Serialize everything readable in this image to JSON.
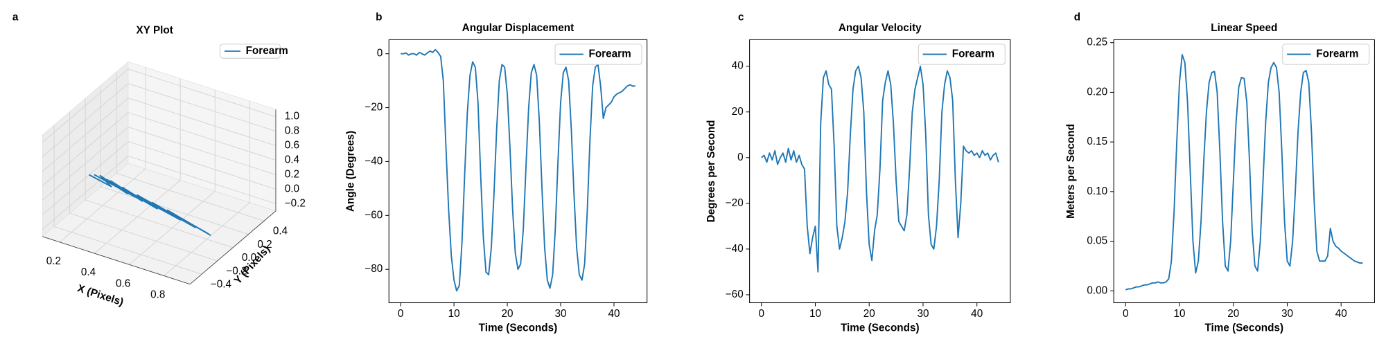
{
  "chart_data": [
    {
      "type": "line3d",
      "panel_label": "a",
      "title": "XY Plot",
      "xlabel": "X (Pixels)",
      "ylabel": "Y (Pixels)",
      "xlim": [
        0.1,
        0.95
      ],
      "ylim": [
        -0.55,
        0.55
      ],
      "zlim": [
        -0.3,
        1.1
      ],
      "xticks": [
        0.2,
        0.4,
        0.6,
        0.8
      ],
      "yticks": [
        {
          "value": -0.4,
          "label": "−0.4"
        },
        {
          "value": -0.2,
          "label": "−0.2"
        },
        {
          "value": 0,
          "label": "0.0"
        },
        0.2,
        0.4
      ],
      "zticks": [
        {
          "value": -0.2,
          "label": "−0.2"
        },
        {
          "value": 0,
          "label": "0.0"
        },
        0.2,
        0.4,
        0.6,
        0.8,
        {
          "value": 1,
          "label": "1.0"
        }
      ],
      "legend": "upper right",
      "series": [
        {
          "name": "Forearm",
          "color": "#1f77b4",
          "x": [
            0.1,
            0.25,
            0.15,
            0.35,
            0.22,
            0.45,
            0.3,
            0.55,
            0.4,
            0.65,
            0.5,
            0.75,
            0.6,
            0.85,
            0.7,
            0.9,
            0.75,
            0.88,
            0.6,
            0.8,
            0.45,
            0.7,
            0.3,
            0.55,
            0.2,
            0.4,
            0.12
          ],
          "y": [
            0.05,
            0,
            0.08,
            -0.02,
            0.06,
            -0.05,
            0.03,
            -0.08,
            0,
            -0.1,
            -0.03,
            -0.13,
            -0.06,
            -0.16,
            -0.1,
            -0.18,
            -0.12,
            -0.17,
            -0.07,
            -0.15,
            -0.02,
            -0.12,
            0.02,
            -0.08,
            0.06,
            -0.03,
            0.07
          ],
          "z": [
            0,
            0,
            0,
            0,
            0,
            0,
            0,
            0,
            0,
            0,
            0,
            0,
            0,
            0,
            0,
            0,
            0,
            0,
            0,
            0,
            0,
            0,
            0,
            0,
            0,
            0,
            0
          ]
        }
      ]
    },
    {
      "type": "line",
      "panel_label": "b",
      "title": "Angular Displacement",
      "xlabel": "Time (Seconds)",
      "ylabel": "Angle (Degrees)",
      "xlim": [
        -2.2,
        46.2
      ],
      "ylim": [
        -92.4,
        5.2
      ],
      "xticks": [
        0,
        10,
        20,
        30,
        40
      ],
      "yticks": [
        {
          "value": -80,
          "label": "−80"
        },
        {
          "value": -60,
          "label": "−60"
        },
        {
          "value": -40,
          "label": "−40"
        },
        {
          "value": -20,
          "label": "−20"
        },
        0
      ],
      "legend": "upper right",
      "x": [
        0,
        0.5,
        1,
        1.5,
        2,
        2.5,
        3,
        3.5,
        4,
        4.5,
        5,
        5.5,
        6,
        6.5,
        7,
        7.5,
        8,
        8.5,
        9,
        9.5,
        10,
        10.5,
        11,
        11.5,
        12,
        12.5,
        13,
        13.5,
        14,
        14.5,
        15,
        15.5,
        16,
        16.5,
        17,
        17.5,
        18,
        18.5,
        19,
        19.5,
        20,
        20.5,
        21,
        21.5,
        22,
        22.5,
        23,
        23.5,
        24,
        24.5,
        25,
        25.5,
        26,
        26.5,
        27,
        27.5,
        28,
        28.5,
        29,
        29.5,
        30,
        30.5,
        31,
        31.5,
        32,
        32.5,
        33,
        33.5,
        34,
        34.5,
        35,
        35.5,
        36,
        36.5,
        37,
        37.5,
        38,
        38.5,
        39,
        39.5,
        40,
        40.5,
        41,
        41.5,
        42,
        42.5,
        43,
        43.5,
        44
      ],
      "series": [
        {
          "name": "Forearm",
          "color": "#1f77b4",
          "values": [
            0,
            0,
            0.3,
            -0.5,
            0,
            0,
            -0.5,
            0.5,
            0,
            -0.5,
            0.3,
            1,
            0.5,
            1.5,
            0.5,
            -1,
            -10,
            -35,
            -58,
            -75,
            -84,
            -88,
            -86,
            -70,
            -45,
            -22,
            -8,
            -3,
            -5,
            -18,
            -45,
            -68,
            -81,
            -82,
            -72,
            -52,
            -28,
            -10,
            -4,
            -5,
            -15,
            -35,
            -58,
            -74,
            -80,
            -78,
            -65,
            -42,
            -20,
            -7,
            -4,
            -8,
            -25,
            -50,
            -72,
            -84,
            -87,
            -82,
            -65,
            -40,
            -18,
            -7,
            -5,
            -10,
            -28,
            -52,
            -72,
            -82,
            -84,
            -78,
            -58,
            -32,
            -12,
            -5,
            -4,
            -12,
            -24,
            -20,
            -19,
            -18,
            -16,
            -15,
            -14.5,
            -14,
            -13,
            -12,
            -11.5,
            -12,
            -12
          ]
        }
      ]
    },
    {
      "type": "line",
      "panel_label": "c",
      "title": "Angular Velocity",
      "xlabel": "Time (Seconds)",
      "ylabel": "Degrees per Second",
      "xlim": [
        -2.2,
        46.2
      ],
      "ylim": [
        -63.5,
        51.6
      ],
      "xticks": [
        0,
        10,
        20,
        30,
        40
      ],
      "yticks": [
        {
          "value": -60,
          "label": "−60"
        },
        {
          "value": -40,
          "label": "−40"
        },
        {
          "value": -20,
          "label": "−20"
        },
        0,
        20,
        40
      ],
      "legend": "upper right",
      "x": [
        0,
        0.5,
        1,
        1.5,
        2,
        2.5,
        3,
        3.5,
        4,
        4.5,
        5,
        5.5,
        6,
        6.5,
        7,
        7.5,
        8,
        8.5,
        9,
        9.5,
        10,
        10.5,
        11,
        11.5,
        12,
        12.5,
        13,
        13.5,
        14,
        14.5,
        15,
        15.5,
        16,
        16.5,
        17,
        17.5,
        18,
        18.5,
        19,
        19.5,
        20,
        20.5,
        21,
        21.5,
        22,
        22.5,
        23,
        23.5,
        24,
        24.5,
        25,
        25.5,
        26,
        26.5,
        27,
        27.5,
        28,
        28.5,
        29,
        29.5,
        30,
        30.5,
        31,
        31.5,
        32,
        32.5,
        33,
        33.5,
        34,
        34.5,
        35,
        35.5,
        36,
        36.5,
        37,
        37.5,
        38,
        38.5,
        39,
        39.5,
        40,
        40.5,
        41,
        41.5,
        42,
        42.5,
        43,
        43.5,
        44
      ],
      "series": [
        {
          "name": "Forearm",
          "color": "#1f77b4",
          "values": [
            0,
            1,
            -2,
            2,
            -1,
            3,
            -3,
            0,
            2,
            -2,
            4,
            -1,
            3,
            -2,
            1,
            -3,
            -5,
            -30,
            -42,
            -35,
            -30,
            -50,
            15,
            35,
            38,
            32,
            30,
            5,
            -30,
            -40,
            -35,
            -28,
            -15,
            10,
            30,
            38,
            40,
            35,
            20,
            -15,
            -38,
            -45,
            -32,
            -25,
            -5,
            25,
            33,
            38,
            32,
            15,
            -10,
            -28,
            -30,
            -32,
            -25,
            -5,
            20,
            30,
            35,
            40,
            32,
            10,
            -25,
            -38,
            -40,
            -30,
            -10,
            20,
            32,
            38,
            35,
            25,
            -10,
            -35,
            -20,
            5,
            3,
            2,
            3,
            1,
            2,
            0,
            3,
            1,
            2,
            -1,
            1,
            2,
            -2
          ]
        }
      ]
    },
    {
      "type": "line",
      "panel_label": "d",
      "title": "Linear Speed",
      "xlabel": "Time (Seconds)",
      "ylabel": "Meters per Second",
      "xlim": [
        -2.2,
        46.2
      ],
      "ylim": [
        -0.012,
        0.253
      ],
      "xticks": [
        0,
        10,
        20,
        30,
        40
      ],
      "yticks": [
        {
          "value": 0,
          "label": "0.00"
        },
        0.05,
        {
          "value": 0.1,
          "label": "0.10"
        },
        0.15,
        {
          "value": 0.2,
          "label": "0.20"
        },
        0.25
      ],
      "legend": "upper right",
      "x": [
        0,
        0.5,
        1,
        1.5,
        2,
        2.5,
        3,
        3.5,
        4,
        4.5,
        5,
        5.5,
        6,
        6.5,
        7,
        7.5,
        8,
        8.5,
        9,
        9.5,
        10,
        10.5,
        11,
        11.5,
        12,
        12.5,
        13,
        13.5,
        14,
        14.5,
        15,
        15.5,
        16,
        16.5,
        17,
        17.5,
        18,
        18.5,
        19,
        19.5,
        20,
        20.5,
        21,
        21.5,
        22,
        22.5,
        23,
        23.5,
        24,
        24.5,
        25,
        25.5,
        26,
        26.5,
        27,
        27.5,
        28,
        28.5,
        29,
        29.5,
        30,
        30.5,
        31,
        31.5,
        32,
        32.5,
        33,
        33.5,
        34,
        34.5,
        35,
        35.5,
        36,
        36.5,
        37,
        37.5,
        38,
        38.5,
        39,
        39.5,
        40,
        40.5,
        41,
        41.5,
        42,
        42.5,
        43,
        43.5,
        44
      ],
      "series": [
        {
          "name": "Forearm",
          "color": "#1f77b4",
          "values": [
            0.001,
            0.002,
            0.002,
            0.003,
            0.004,
            0.004,
            0.005,
            0.006,
            0.006,
            0.007,
            0.008,
            0.008,
            0.009,
            0.008,
            0.008,
            0.009,
            0.012,
            0.03,
            0.08,
            0.15,
            0.21,
            0.238,
            0.23,
            0.19,
            0.12,
            0.05,
            0.018,
            0.03,
            0.07,
            0.13,
            0.18,
            0.21,
            0.22,
            0.221,
            0.2,
            0.14,
            0.07,
            0.025,
            0.02,
            0.05,
            0.11,
            0.17,
            0.205,
            0.215,
            0.214,
            0.19,
            0.13,
            0.06,
            0.025,
            0.02,
            0.05,
            0.11,
            0.17,
            0.21,
            0.225,
            0.23,
            0.225,
            0.2,
            0.14,
            0.07,
            0.03,
            0.025,
            0.05,
            0.1,
            0.16,
            0.2,
            0.22,
            0.222,
            0.21,
            0.16,
            0.09,
            0.04,
            0.03,
            0.03,
            0.03,
            0.035,
            0.063,
            0.05,
            0.045,
            0.043,
            0.04,
            0.038,
            0.036,
            0.034,
            0.032,
            0.03,
            0.029,
            0.028,
            0.028
          ]
        }
      ]
    }
  ]
}
